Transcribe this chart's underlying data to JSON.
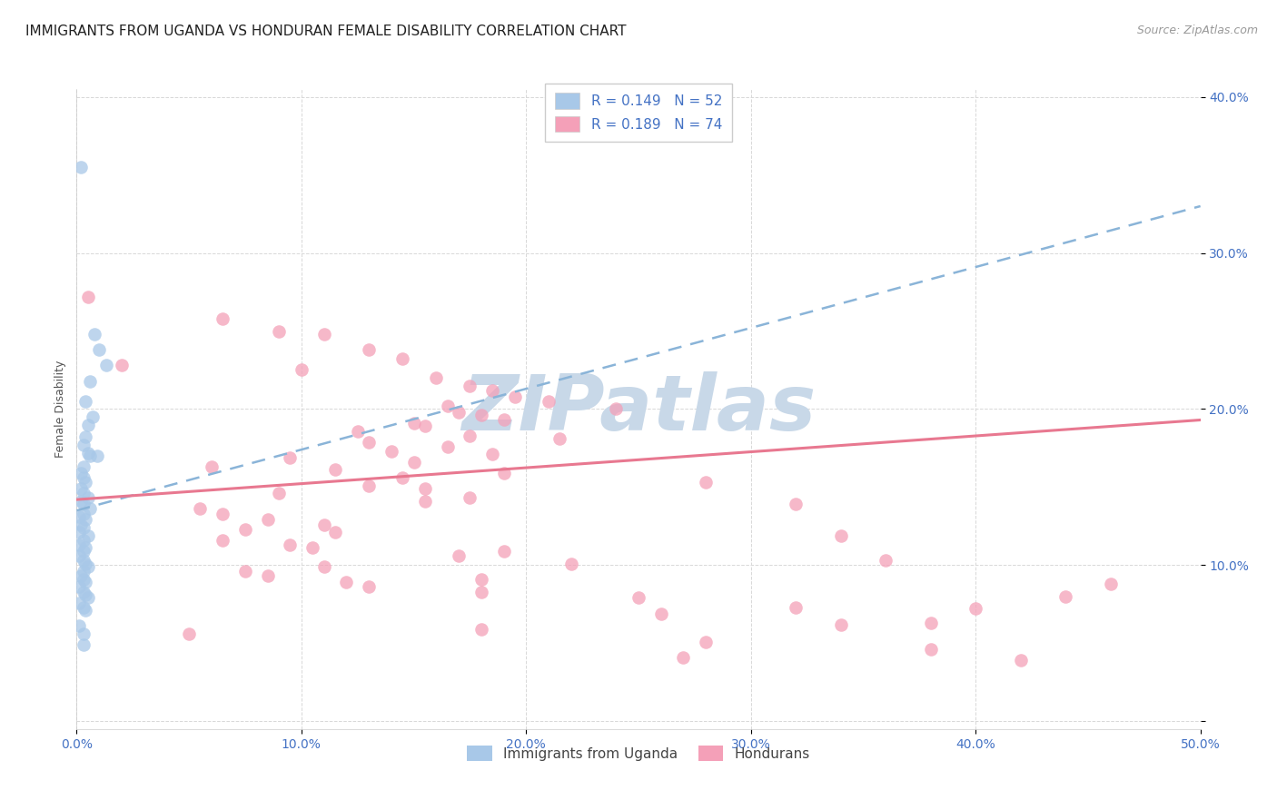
{
  "title": "IMMIGRANTS FROM UGANDA VS HONDURAN FEMALE DISABILITY CORRELATION CHART",
  "source": "Source: ZipAtlas.com",
  "ylabel": "Female Disability",
  "xlim": [
    0.0,
    0.5
  ],
  "ylim": [
    -0.005,
    0.405
  ],
  "xticks": [
    0.0,
    0.1,
    0.2,
    0.3,
    0.4,
    0.5
  ],
  "yticks": [
    0.0,
    0.1,
    0.2,
    0.3,
    0.4
  ],
  "xtick_labels": [
    "0.0%",
    "10.0%",
    "20.0%",
    "30.0%",
    "40.0%",
    "50.0%"
  ],
  "ytick_labels": [
    "",
    "10.0%",
    "20.0%",
    "30.0%",
    "40.0%"
  ],
  "uganda_color": "#a8c8e8",
  "honduran_color": "#f4a0b8",
  "uganda_line_color": "#8ab4d8",
  "honduran_line_color": "#e87890",
  "watermark_color": "#c8d8e8",
  "background_color": "#ffffff",
  "grid_color": "#d8d8d8",
  "title_fontsize": 11,
  "axis_label_fontsize": 9,
  "tick_fontsize": 10,
  "legend_fontsize": 11,
  "source_fontsize": 9,
  "tick_color": "#4472c4",
  "uganda_scatter": [
    [
      0.002,
      0.355
    ],
    [
      0.008,
      0.248
    ],
    [
      0.01,
      0.238
    ],
    [
      0.013,
      0.228
    ],
    [
      0.006,
      0.218
    ],
    [
      0.004,
      0.205
    ],
    [
      0.007,
      0.195
    ],
    [
      0.005,
      0.19
    ],
    [
      0.004,
      0.182
    ],
    [
      0.003,
      0.177
    ],
    [
      0.005,
      0.172
    ],
    [
      0.006,
      0.17
    ],
    [
      0.009,
      0.17
    ],
    [
      0.003,
      0.163
    ],
    [
      0.002,
      0.159
    ],
    [
      0.003,
      0.156
    ],
    [
      0.004,
      0.153
    ],
    [
      0.002,
      0.149
    ],
    [
      0.003,
      0.146
    ],
    [
      0.005,
      0.143
    ],
    [
      0.002,
      0.141
    ],
    [
      0.003,
      0.139
    ],
    [
      0.006,
      0.136
    ],
    [
      0.003,
      0.133
    ],
    [
      0.001,
      0.131
    ],
    [
      0.004,
      0.129
    ],
    [
      0.002,
      0.126
    ],
    [
      0.003,
      0.124
    ],
    [
      0.001,
      0.121
    ],
    [
      0.005,
      0.119
    ],
    [
      0.003,
      0.116
    ],
    [
      0.001,
      0.113
    ],
    [
      0.004,
      0.111
    ],
    [
      0.003,
      0.109
    ],
    [
      0.001,
      0.106
    ],
    [
      0.003,
      0.103
    ],
    [
      0.004,
      0.101
    ],
    [
      0.005,
      0.099
    ],
    [
      0.003,
      0.096
    ],
    [
      0.002,
      0.093
    ],
    [
      0.003,
      0.091
    ],
    [
      0.004,
      0.089
    ],
    [
      0.001,
      0.086
    ],
    [
      0.003,
      0.083
    ],
    [
      0.004,
      0.081
    ],
    [
      0.005,
      0.079
    ],
    [
      0.001,
      0.076
    ],
    [
      0.003,
      0.073
    ],
    [
      0.004,
      0.071
    ],
    [
      0.001,
      0.061
    ],
    [
      0.003,
      0.056
    ],
    [
      0.003,
      0.049
    ]
  ],
  "honduran_scatter": [
    [
      0.005,
      0.272
    ],
    [
      0.065,
      0.258
    ],
    [
      0.09,
      0.25
    ],
    [
      0.11,
      0.248
    ],
    [
      0.13,
      0.238
    ],
    [
      0.145,
      0.232
    ],
    [
      0.02,
      0.228
    ],
    [
      0.1,
      0.225
    ],
    [
      0.16,
      0.22
    ],
    [
      0.175,
      0.215
    ],
    [
      0.185,
      0.212
    ],
    [
      0.195,
      0.208
    ],
    [
      0.21,
      0.205
    ],
    [
      0.165,
      0.202
    ],
    [
      0.24,
      0.2
    ],
    [
      0.17,
      0.198
    ],
    [
      0.18,
      0.196
    ],
    [
      0.19,
      0.193
    ],
    [
      0.15,
      0.191
    ],
    [
      0.155,
      0.189
    ],
    [
      0.125,
      0.186
    ],
    [
      0.175,
      0.183
    ],
    [
      0.215,
      0.181
    ],
    [
      0.13,
      0.179
    ],
    [
      0.165,
      0.176
    ],
    [
      0.14,
      0.173
    ],
    [
      0.185,
      0.171
    ],
    [
      0.095,
      0.169
    ],
    [
      0.15,
      0.166
    ],
    [
      0.06,
      0.163
    ],
    [
      0.115,
      0.161
    ],
    [
      0.19,
      0.159
    ],
    [
      0.145,
      0.156
    ],
    [
      0.28,
      0.153
    ],
    [
      0.13,
      0.151
    ],
    [
      0.155,
      0.149
    ],
    [
      0.09,
      0.146
    ],
    [
      0.175,
      0.143
    ],
    [
      0.155,
      0.141
    ],
    [
      0.32,
      0.139
    ],
    [
      0.055,
      0.136
    ],
    [
      0.065,
      0.133
    ],
    [
      0.085,
      0.129
    ],
    [
      0.11,
      0.126
    ],
    [
      0.075,
      0.123
    ],
    [
      0.115,
      0.121
    ],
    [
      0.34,
      0.119
    ],
    [
      0.065,
      0.116
    ],
    [
      0.095,
      0.113
    ],
    [
      0.105,
      0.111
    ],
    [
      0.19,
      0.109
    ],
    [
      0.17,
      0.106
    ],
    [
      0.36,
      0.103
    ],
    [
      0.22,
      0.101
    ],
    [
      0.11,
      0.099
    ],
    [
      0.075,
      0.096
    ],
    [
      0.085,
      0.093
    ],
    [
      0.18,
      0.091
    ],
    [
      0.12,
      0.089
    ],
    [
      0.13,
      0.086
    ],
    [
      0.18,
      0.083
    ],
    [
      0.25,
      0.079
    ],
    [
      0.32,
      0.073
    ],
    [
      0.26,
      0.069
    ],
    [
      0.38,
      0.063
    ],
    [
      0.18,
      0.059
    ],
    [
      0.05,
      0.056
    ],
    [
      0.28,
      0.051
    ],
    [
      0.38,
      0.046
    ],
    [
      0.27,
      0.041
    ],
    [
      0.42,
      0.039
    ],
    [
      0.34,
      0.062
    ],
    [
      0.4,
      0.072
    ],
    [
      0.44,
      0.08
    ],
    [
      0.46,
      0.088
    ]
  ]
}
